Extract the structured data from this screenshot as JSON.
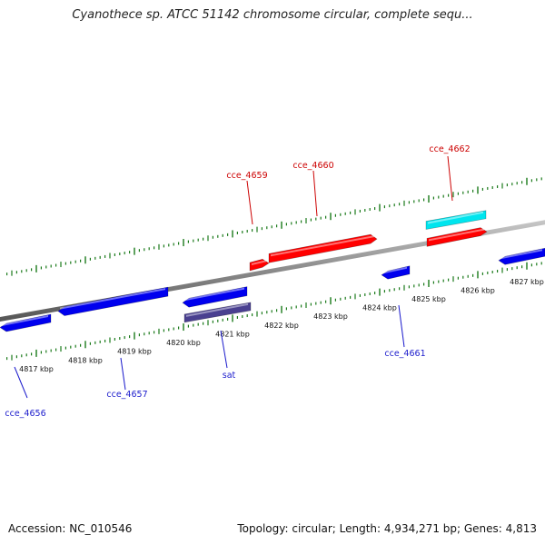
{
  "title": "Cyanothece sp. ATCC 51142 chromosome circular, complete sequ...",
  "footer": {
    "accession_text": "Accession: NC_010546",
    "summary_text": "Topology: circular; Length: 4,934,271 bp; Genes: 4,813"
  },
  "colors": {
    "backbone": "#8a8a8a",
    "tick": "#1a7a1a",
    "forward_gene": "#ff0000",
    "reverse_gene": "#0000ee",
    "rna_gene": "#00e5ee",
    "special_gene": "#4a4090",
    "forward_label": "#cc0000",
    "reverse_label": "#1a1acc"
  },
  "scale": {
    "unit": "kbp",
    "labels": [
      {
        "text": "4817 kbp"
      },
      {
        "text": "4818 kbp"
      },
      {
        "text": "4819 kbp"
      },
      {
        "text": "4820 kbp"
      },
      {
        "text": "4821 kbp"
      },
      {
        "text": "4822 kbp"
      },
      {
        "text": "4823 kbp"
      },
      {
        "text": "4824 kbp"
      },
      {
        "text": "4825 kbp"
      },
      {
        "text": "4826 kbp"
      },
      {
        "text": "4827 kbp"
      }
    ]
  },
  "genes": [
    {
      "id": "cce_4656",
      "strand": "reverse",
      "label": "cce_4656",
      "color_key": "reverse_gene",
      "label_color_key": "reverse_label"
    },
    {
      "id": "cce_4657",
      "strand": "reverse",
      "label": "cce_4657",
      "color_key": "reverse_gene",
      "label_color_key": "reverse_label"
    },
    {
      "id": "unlabeled_reverse_1",
      "strand": "reverse",
      "label": "",
      "color_key": "reverse_gene",
      "label_color_key": "reverse_label"
    },
    {
      "id": "sat",
      "strand": "reverse",
      "label": "sat",
      "color_key": "special_gene",
      "label_color_key": "reverse_label"
    },
    {
      "id": "cce_4659",
      "strand": "forward",
      "label": "cce_4659",
      "color_key": "forward_gene",
      "label_color_key": "forward_label"
    },
    {
      "id": "cce_4660",
      "strand": "forward",
      "label": "cce_4660",
      "color_key": "forward_gene",
      "label_color_key": "forward_label"
    },
    {
      "id": "cce_4661",
      "strand": "reverse",
      "label": "cce_4661",
      "color_key": "reverse_gene",
      "label_color_key": "reverse_label"
    },
    {
      "id": "cce_4662_rna",
      "strand": "forward",
      "label": "cce_4662",
      "color_key": "rna_gene",
      "label_color_key": "forward_label"
    },
    {
      "id": "cce_4662",
      "strand": "forward",
      "label": "",
      "color_key": "forward_gene",
      "label_color_key": "forward_label"
    },
    {
      "id": "unlabeled_reverse_2",
      "strand": "reverse",
      "label": "",
      "color_key": "reverse_gene",
      "label_color_key": "reverse_label"
    }
  ]
}
